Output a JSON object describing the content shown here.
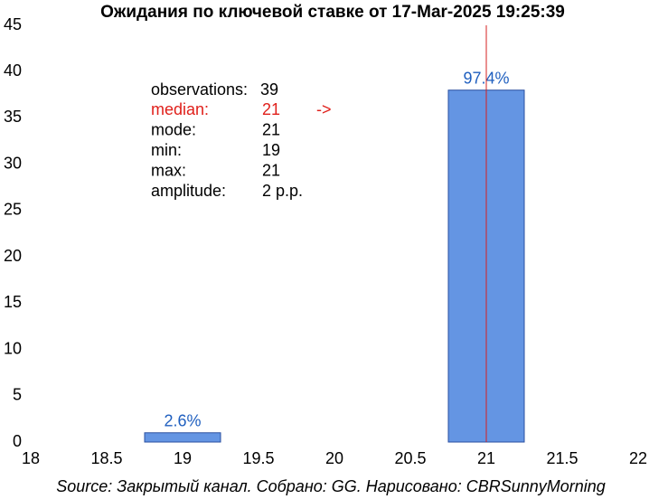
{
  "chart_data": {
    "type": "bar",
    "title": "Ожидания по ключевой ставке от 17-Mar-2025 19:25:39",
    "x": [
      19,
      21
    ],
    "values": [
      1,
      38
    ],
    "value_labels": [
      "2.6%",
      "97.4%"
    ],
    "color": "#6495e3",
    "edge_color": "#2a4fa0",
    "xlim": [
      18,
      22
    ],
    "xticks": [
      18,
      18.5,
      19,
      19.5,
      20,
      20.5,
      21,
      21.5,
      22
    ],
    "ylim": [
      0,
      45
    ],
    "yticks": [
      0,
      5,
      10,
      15,
      20,
      25,
      30,
      35,
      40,
      45
    ],
    "median_line": 21,
    "median_line_color": "#d62020",
    "stats": [
      [
        "observations:",
        "39"
      ],
      [
        "median:",
        "21",
        "->"
      ],
      [
        "mode:",
        "21"
      ],
      [
        "min:",
        "19"
      ],
      [
        "max:",
        "21"
      ],
      [
        "amplitude:",
        "2 p.p."
      ]
    ],
    "source": "Source: Закрытый канал. Собрано: GG. Нарисовано: CBRSunnyMorning"
  }
}
